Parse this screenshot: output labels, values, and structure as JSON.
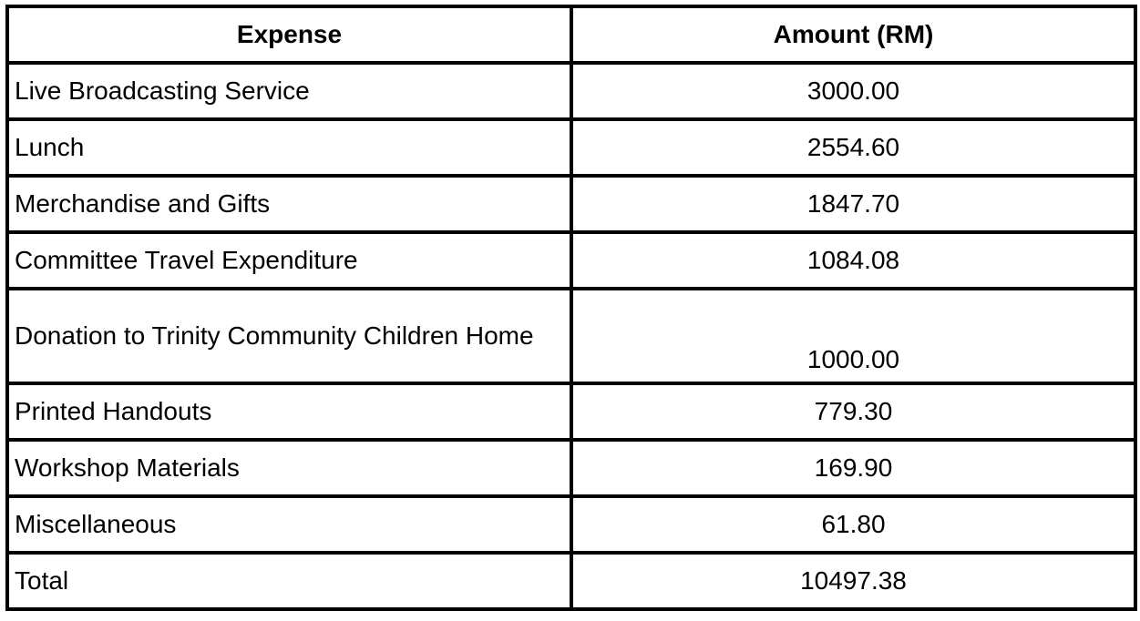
{
  "table": {
    "headers": {
      "expense": "Expense",
      "amount": "Amount (RM)"
    },
    "rows": [
      {
        "expense": "Live Broadcasting Service",
        "amount": "3000.00"
      },
      {
        "expense": "Lunch",
        "amount": "2554.60"
      },
      {
        "expense": "Merchandise and Gifts",
        "amount": "1847.70"
      },
      {
        "expense": "Committee Travel Expenditure",
        "amount": "1084.08"
      },
      {
        "expense": "Donation to Trinity Community Children Home",
        "amount": "1000.00"
      },
      {
        "expense": "Printed Handouts",
        "amount": "779.30"
      },
      {
        "expense": "Workshop Materials",
        "amount": "169.90"
      },
      {
        "expense": "Miscellaneous",
        "amount": "61.80"
      }
    ],
    "total": {
      "label": "Total",
      "amount": "10497.38"
    }
  }
}
